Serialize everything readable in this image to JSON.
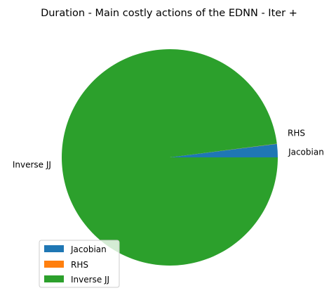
{
  "chart_data": {
    "type": "pie",
    "title": "Duration - Main costly actions of the EDNN - Iter +",
    "slices": [
      {
        "label": "Jacobian",
        "value": 2.0,
        "color": "#1f77b4"
      },
      {
        "label": "RHS",
        "value": 0.02,
        "color": "#ff7f0e"
      },
      {
        "label": "Inverse JJ",
        "value": 97.98,
        "color": "#2ca02c"
      }
    ],
    "start_angle_deg": 0,
    "direction": "counterclockwise",
    "legend": {
      "placement": "lower-left",
      "entries": [
        "Jacobian",
        "RHS",
        "Inverse JJ"
      ]
    }
  }
}
